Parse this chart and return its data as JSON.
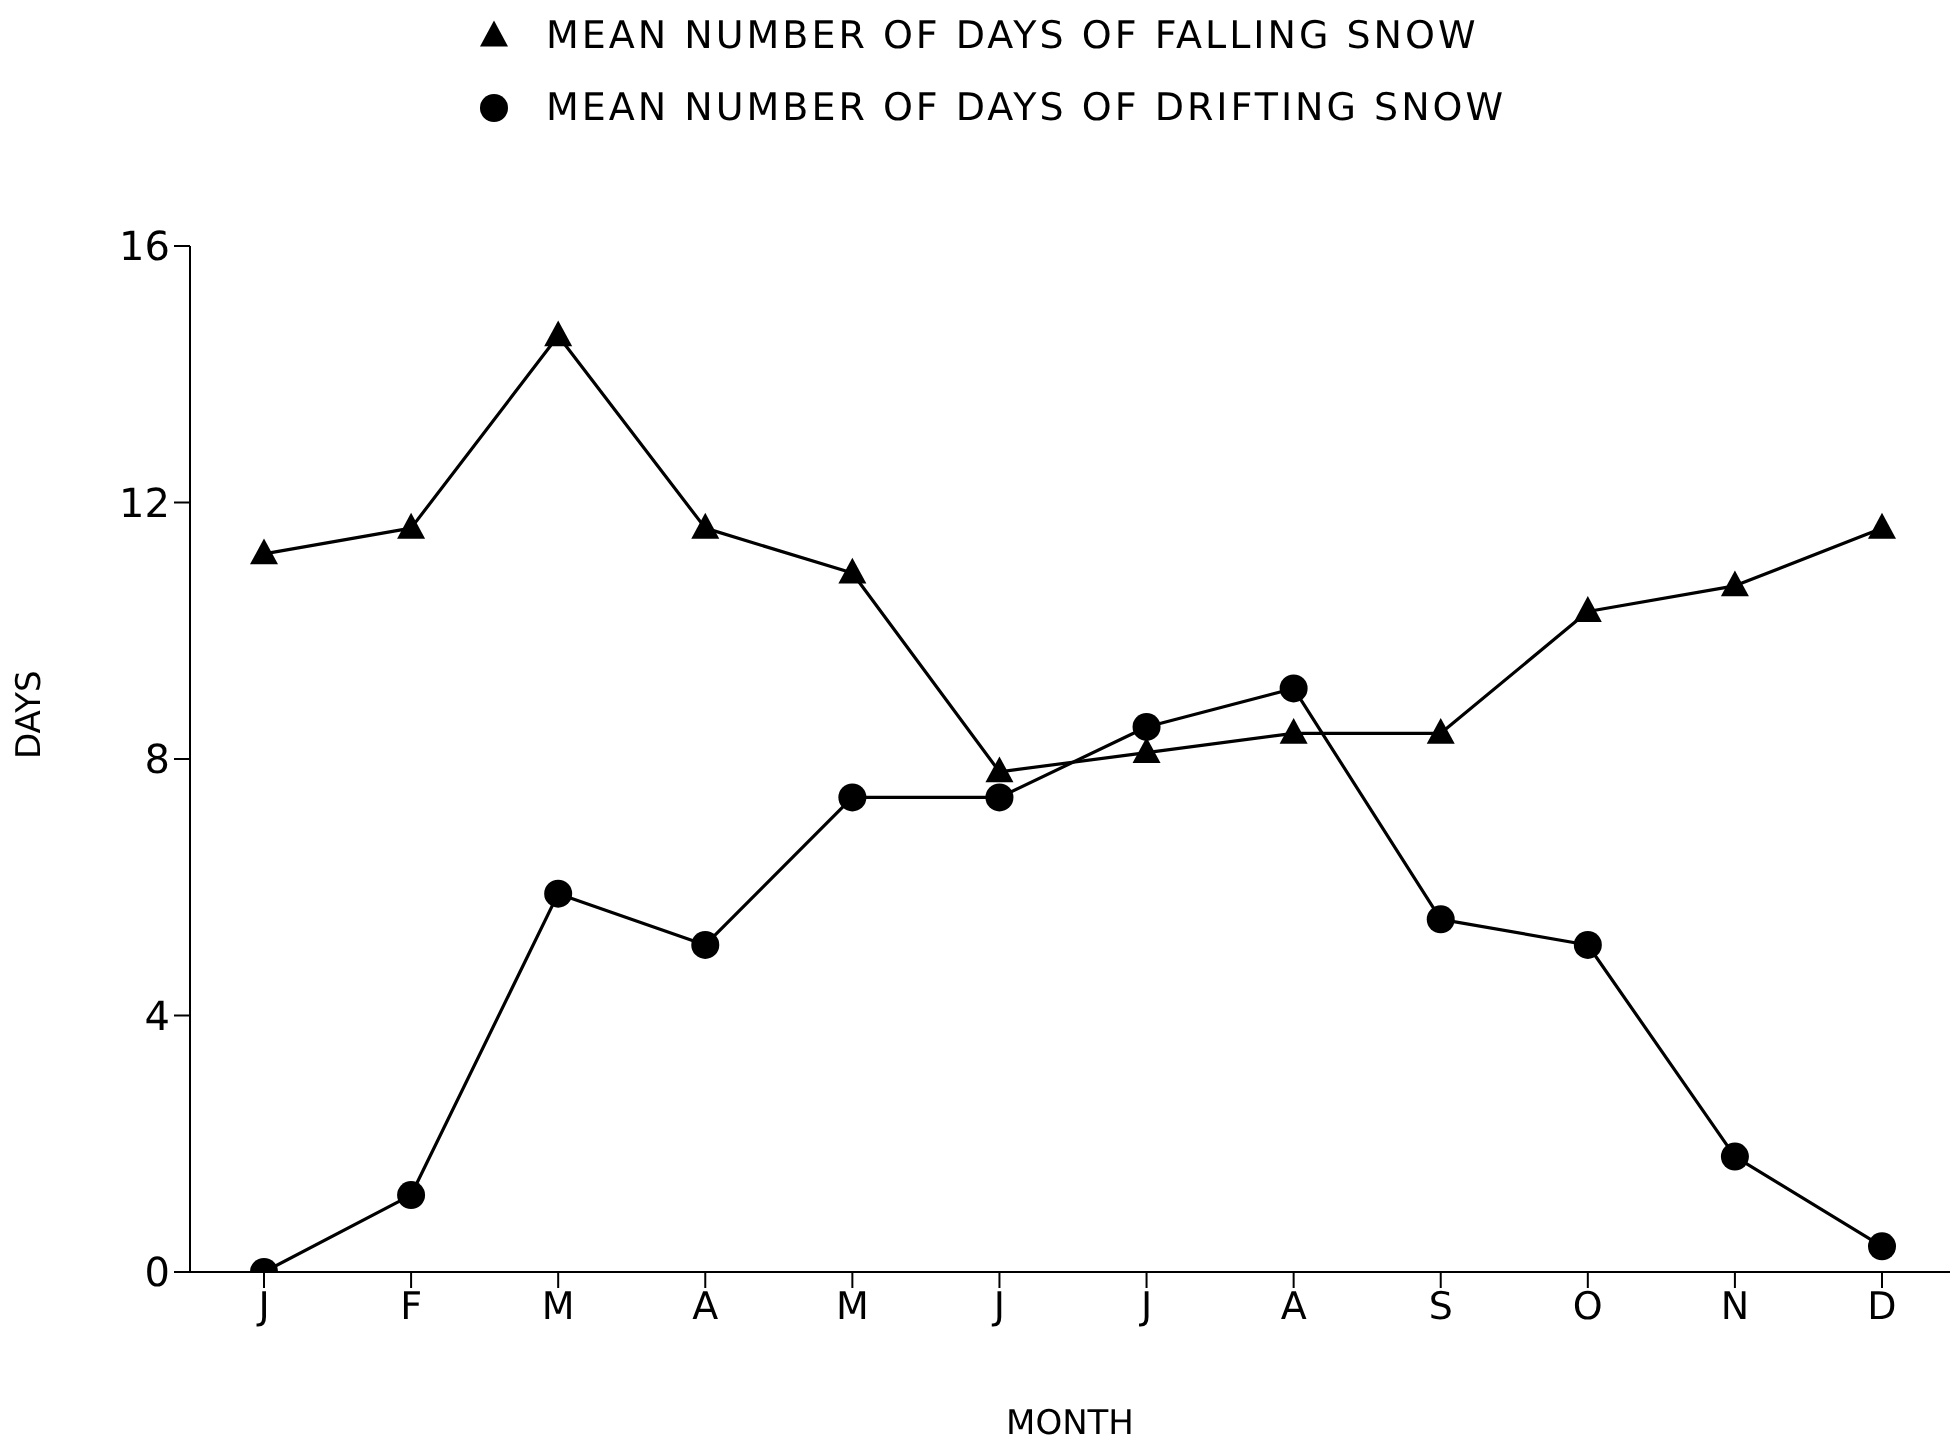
{
  "chart_data": {
    "type": "line",
    "xlabel": "MONTH",
    "ylabel": "DAYS",
    "categories": [
      "J",
      "F",
      "M",
      "A",
      "M",
      "J",
      "J",
      "A",
      "S",
      "O",
      "N",
      "D"
    ],
    "series": [
      {
        "name": "MEAN NUMBER OF DAYS OF FALLING SNOW",
        "color": "#000000",
        "marker": "triangle",
        "values": [
          11.2,
          11.6,
          14.6,
          11.6,
          10.9,
          7.8,
          8.1,
          8.4,
          8.4,
          10.3,
          10.7,
          11.6
        ]
      },
      {
        "name": "MEAN NUMBER OF DAYS OF DRIFTING SNOW",
        "color": "#000000",
        "marker": "circle",
        "values": [
          0,
          1.2,
          5.9,
          5.1,
          7.4,
          7.4,
          8.5,
          9.1,
          5.5,
          5.1,
          1.8,
          0.4
        ]
      }
    ],
    "ylim": [
      0,
      16
    ],
    "yticks": [
      0,
      4,
      8,
      12,
      16
    ],
    "grid": false,
    "legend": "top",
    "line_style": "solid"
  }
}
